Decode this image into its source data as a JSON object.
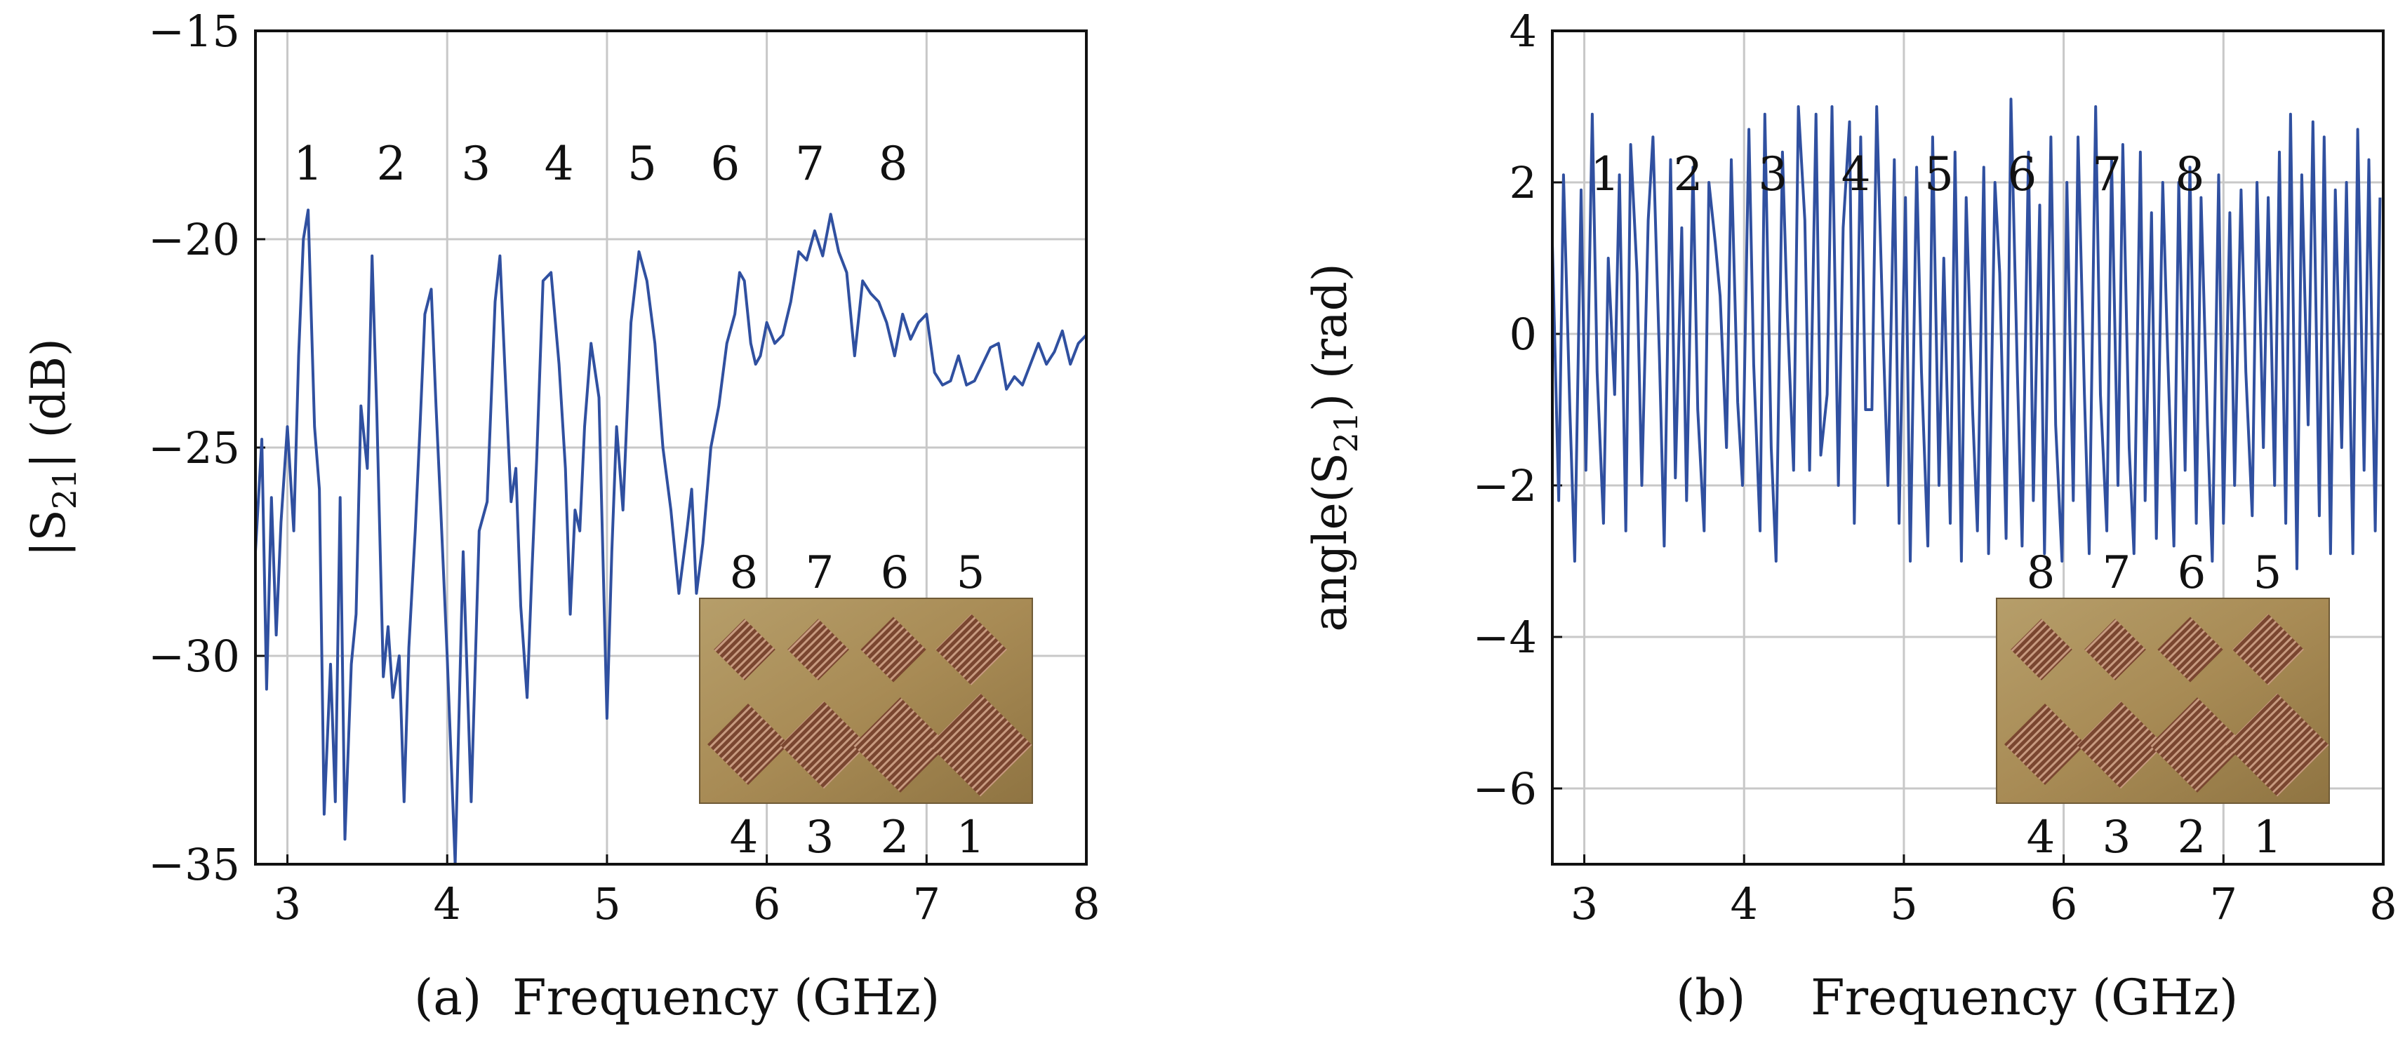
{
  "chart_data": [
    {
      "id": "a",
      "type": "line",
      "caption_letter": "(a)",
      "xlabel": "Frequency (GHz)",
      "ylabel": "|S21| (dB)",
      "ylabel_main": "|S",
      "ylabel_sub": "21",
      "ylabel_tail": "| (dB)",
      "xlim": [
        2.8,
        8.0
      ],
      "ylim": [
        -35,
        -15
      ],
      "xticks": [
        3,
        4,
        5,
        6,
        7,
        8
      ],
      "yticks": [
        -35,
        -30,
        -25,
        -20,
        -15
      ],
      "ytick_labels": [
        "−35",
        "−30",
        "−25",
        "−20",
        "−15"
      ],
      "grid": true,
      "series_color": "#3050a0",
      "peak_labels": [
        {
          "text": "1",
          "x": 3.13
        },
        {
          "text": "2",
          "x": 3.65
        },
        {
          "text": "3",
          "x": 4.18
        },
        {
          "text": "4",
          "x": 4.7
        },
        {
          "text": "5",
          "x": 5.22
        },
        {
          "text": "6",
          "x": 5.74
        },
        {
          "text": "7",
          "x": 6.27
        },
        {
          "text": "8",
          "x": 6.79
        }
      ],
      "peak_label_y": -18.2,
      "inset": {
        "top_labels": [
          "8",
          "7",
          "6",
          "5"
        ],
        "bottom_labels": [
          "4",
          "3",
          "2",
          "1"
        ]
      },
      "x": [
        2.8,
        2.84,
        2.87,
        2.9,
        2.93,
        2.96,
        3.0,
        3.04,
        3.07,
        3.1,
        3.13,
        3.17,
        3.2,
        3.23,
        3.27,
        3.3,
        3.33,
        3.36,
        3.4,
        3.43,
        3.46,
        3.5,
        3.53,
        3.56,
        3.6,
        3.63,
        3.66,
        3.7,
        3.73,
        3.76,
        3.8,
        3.83,
        3.86,
        3.9,
        3.93,
        3.96,
        4.0,
        4.05,
        4.1,
        4.15,
        4.2,
        4.25,
        4.3,
        4.33,
        4.36,
        4.4,
        4.43,
        4.46,
        4.5,
        4.53,
        4.56,
        4.6,
        4.65,
        4.7,
        4.74,
        4.77,
        4.8,
        4.83,
        4.86,
        4.9,
        4.95,
        5.0,
        5.03,
        5.06,
        5.1,
        5.15,
        5.2,
        5.25,
        5.3,
        5.35,
        5.4,
        5.45,
        5.5,
        5.53,
        5.56,
        5.6,
        5.65,
        5.7,
        5.75,
        5.8,
        5.83,
        5.86,
        5.9,
        5.93,
        5.96,
        6.0,
        6.05,
        6.1,
        6.15,
        6.2,
        6.25,
        6.3,
        6.35,
        6.4,
        6.45,
        6.5,
        6.55,
        6.6,
        6.65,
        6.7,
        6.75,
        6.8,
        6.85,
        6.9,
        6.95,
        7.0,
        7.05,
        7.1,
        7.15,
        7.2,
        7.25,
        7.3,
        7.35,
        7.4,
        7.45,
        7.5,
        7.55,
        7.6,
        7.65,
        7.7,
        7.75,
        7.8,
        7.85,
        7.9,
        7.95,
        8.0
      ],
      "values": [
        -27.5,
        -24.8,
        -30.8,
        -26.2,
        -29.5,
        -26.8,
        -24.5,
        -27.0,
        -22.8,
        -20.0,
        -19.3,
        -24.5,
        -26.0,
        -33.8,
        -30.2,
        -33.5,
        -26.2,
        -34.4,
        -30.2,
        -29.0,
        -24.0,
        -25.5,
        -20.4,
        -24.2,
        -30.5,
        -29.3,
        -31.0,
        -30.0,
        -33.5,
        -29.8,
        -27.0,
        -24.5,
        -21.8,
        -21.2,
        -24.0,
        -26.5,
        -30.0,
        -35.0,
        -27.5,
        -33.5,
        -27.0,
        -26.3,
        -21.5,
        -20.4,
        -23.0,
        -26.3,
        -25.5,
        -28.8,
        -31.0,
        -28.0,
        -25.3,
        -21.0,
        -20.8,
        -23.0,
        -25.5,
        -29.0,
        -26.5,
        -27.0,
        -24.5,
        -22.5,
        -23.8,
        -31.5,
        -27.5,
        -24.5,
        -26.5,
        -22.0,
        -20.3,
        -21.0,
        -22.5,
        -25.0,
        -26.5,
        -28.5,
        -27.0,
        -26.0,
        -28.5,
        -27.3,
        -25.0,
        -24.0,
        -22.5,
        -21.8,
        -20.8,
        -21.0,
        -22.5,
        -23.0,
        -22.8,
        -22.0,
        -22.5,
        -22.3,
        -21.5,
        -20.3,
        -20.5,
        -19.8,
        -20.4,
        -19.4,
        -20.3,
        -20.8,
        -22.8,
        -21.0,
        -21.3,
        -21.5,
        -22.0,
        -22.8,
        -21.8,
        -22.4,
        -22.0,
        -21.8,
        -23.2,
        -23.5,
        -23.4,
        -22.8,
        -23.5,
        -23.4,
        -23.0,
        -22.6,
        -22.5,
        -23.6,
        -23.3,
        -23.5,
        -23.0,
        -22.5,
        -23.0,
        -22.7,
        -22.2,
        -23.0,
        -22.5,
        -22.3
      ]
    },
    {
      "id": "b",
      "type": "line",
      "caption_letter": "(b)",
      "xlabel": "Frequency (GHz)",
      "ylabel": "angle(S21) (rad)",
      "ylabel_main": "angle(S",
      "ylabel_sub": "21",
      "ylabel_tail": ") (rad)",
      "xlim": [
        2.8,
        8.0
      ],
      "ylim": [
        -7,
        4
      ],
      "xticks": [
        3,
        4,
        5,
        6,
        7,
        8
      ],
      "yticks": [
        -6,
        -4,
        -2,
        0,
        2,
        4
      ],
      "ytick_labels": [
        "−6",
        "−4",
        "−2",
        "0",
        "2",
        "4"
      ],
      "grid": true,
      "series_color": "#3050a0",
      "peak_labels": [
        {
          "text": "1",
          "x": 3.13
        },
        {
          "text": "2",
          "x": 3.65
        },
        {
          "text": "3",
          "x": 4.18
        },
        {
          "text": "4",
          "x": 4.7
        },
        {
          "text": "5",
          "x": 5.22
        },
        {
          "text": "6",
          "x": 5.74
        },
        {
          "text": "7",
          "x": 6.27
        },
        {
          "text": "8",
          "x": 6.79
        }
      ],
      "peak_label_y": 2.1,
      "inset": {
        "top_labels": [
          "8",
          "7",
          "6",
          "5"
        ],
        "bottom_labels": [
          "4",
          "3",
          "2",
          "1"
        ]
      },
      "x": [
        2.8,
        2.84,
        2.87,
        2.91,
        2.94,
        2.98,
        3.01,
        3.05,
        3.08,
        3.12,
        3.15,
        3.19,
        3.22,
        3.26,
        3.29,
        3.33,
        3.36,
        3.4,
        3.43,
        3.47,
        3.5,
        3.54,
        3.57,
        3.61,
        3.64,
        3.68,
        3.71,
        3.75,
        3.78,
        3.82,
        3.85,
        3.89,
        3.92,
        3.96,
        3.99,
        4.03,
        4.06,
        4.1,
        4.13,
        4.17,
        4.2,
        4.24,
        4.27,
        4.31,
        4.34,
        4.38,
        4.41,
        4.45,
        4.48,
        4.52,
        4.55,
        4.59,
        4.62,
        4.66,
        4.69,
        4.73,
        4.76,
        4.8,
        4.83,
        4.87,
        4.9,
        4.94,
        4.97,
        5.01,
        5.04,
        5.08,
        5.11,
        5.15,
        5.18,
        5.22,
        5.25,
        5.29,
        5.32,
        5.36,
        5.39,
        5.43,
        5.46,
        5.5,
        5.53,
        5.57,
        5.6,
        5.64,
        5.67,
        5.71,
        5.74,
        5.78,
        5.81,
        5.85,
        5.88,
        5.92,
        5.95,
        5.99,
        6.02,
        6.06,
        6.09,
        6.13,
        6.16,
        6.2,
        6.23,
        6.27,
        6.3,
        6.34,
        6.37,
        6.41,
        6.44,
        6.48,
        6.51,
        6.55,
        6.58,
        6.62,
        6.65,
        6.69,
        6.72,
        6.76,
        6.79,
        6.83,
        6.86,
        6.9,
        6.93,
        6.97,
        7.0,
        7.04,
        7.07,
        7.11,
        7.14,
        7.18,
        7.21,
        7.25,
        7.28,
        7.32,
        7.35,
        7.39,
        7.42,
        7.46,
        7.49,
        7.53,
        7.56,
        7.6,
        7.63,
        7.67,
        7.7,
        7.74,
        7.77,
        7.81,
        7.84,
        7.88,
        7.91,
        7.95,
        7.98
      ],
      "values": [
        1.2,
        -2.2,
        2.1,
        -1.0,
        -3.0,
        1.9,
        -1.8,
        2.9,
        -0.5,
        -2.5,
        1.0,
        -0.8,
        2.1,
        -2.6,
        2.5,
        0.8,
        -2.0,
        1.5,
        2.6,
        -0.3,
        -2.8,
        2.3,
        -1.9,
        1.4,
        -2.2,
        2.2,
        -1.0,
        -2.6,
        2.0,
        1.2,
        0.5,
        -1.5,
        2.3,
        -0.9,
        -2.0,
        2.7,
        -0.4,
        -2.6,
        2.9,
        -1.5,
        -3.0,
        2.4,
        0.3,
        -1.8,
        3.0,
        1.5,
        -1.8,
        2.9,
        -1.6,
        -0.8,
        3.0,
        -2.0,
        1.4,
        2.8,
        -2.5,
        2.6,
        -1.0,
        -1.0,
        3.0,
        0.0,
        -2.0,
        2.3,
        -2.5,
        1.8,
        -3.0,
        2.2,
        -0.5,
        -2.8,
        2.6,
        -2.0,
        1.0,
        -2.5,
        2.4,
        -3.0,
        1.8,
        -1.0,
        -2.6,
        2.2,
        -2.9,
        2.0,
        0.8,
        -2.7,
        3.1,
        -0.5,
        -2.8,
        2.4,
        -2.2,
        1.7,
        -2.9,
        2.6,
        -1.2,
        -3.0,
        2.0,
        -2.2,
        2.6,
        -0.8,
        -2.9,
        3.0,
        -0.8,
        -2.6,
        2.3,
        -2.0,
        2.5,
        -1.5,
        -2.9,
        2.4,
        -2.2,
        1.6,
        -2.7,
        2.0,
        -0.2,
        -2.8,
        2.0,
        -1.8,
        2.2,
        -2.5,
        1.8,
        -1.2,
        -3.0,
        2.1,
        -2.5,
        1.6,
        -2.0,
        1.9,
        -0.5,
        -2.4,
        2.0,
        -1.5,
        1.8,
        -2.0,
        2.4,
        -2.5,
        2.9,
        -3.1,
        2.1,
        -1.2,
        2.8,
        -2.4,
        2.6,
        -2.9,
        1.9,
        -1.5,
        2.0,
        -2.9,
        2.7,
        -1.8,
        2.3,
        -2.6,
        1.8
      ]
    }
  ]
}
